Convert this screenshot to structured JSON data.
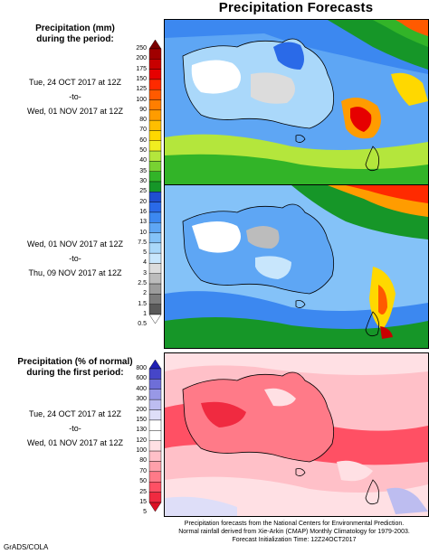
{
  "title": "Precipitation Forecasts",
  "section1": {
    "heading_line1": "Precipitation (mm)",
    "heading_line2": "during the period:"
  },
  "section2": {
    "heading_line1": "Precipitation (% of normal)",
    "heading_line2": "during the first period:"
  },
  "period1": {
    "start": "Tue, 24 OCT 2017 at 12Z",
    "sep": "-to-",
    "end": "Wed, 01 NOV 2017 at 12Z"
  },
  "period2": {
    "start": "Wed, 01 NOV 2017 at 12Z",
    "sep": "-to-",
    "end": "Thu, 09 NOV 2017 at 12Z"
  },
  "period3": {
    "start": "Tue, 24 OCT 2017 at 12Z",
    "sep": "-to-",
    "end": "Wed, 01 NOV 2017 at 12Z"
  },
  "scale_mm": {
    "labels": [
      "250",
      "200",
      "175",
      "150",
      "125",
      "100",
      "90",
      "80",
      "70",
      "60",
      "50",
      "40",
      "35",
      "30",
      "25",
      "20",
      "16",
      "13",
      "10",
      "7.5",
      "5",
      "4",
      "3",
      "2.5",
      "2",
      "1.5",
      "1",
      "0.5"
    ],
    "colors": [
      "#7a0000",
      "#a00000",
      "#c80000",
      "#e60000",
      "#ff2a00",
      "#ff5a00",
      "#ff7e00",
      "#ff9c00",
      "#ffbe00",
      "#ffd800",
      "#f0ee20",
      "#b4e63c",
      "#78d232",
      "#32b428",
      "#169628",
      "#1f4fd0",
      "#2a6ae8",
      "#3c88f0",
      "#5ea6f4",
      "#84c2f8",
      "#aad8fa",
      "#c8e6fc",
      "#dcdcdc",
      "#bcbcbc",
      "#9c9c9c",
      "#7c7c7c",
      "#5a5a5a",
      "#ffffff"
    ]
  },
  "scale_pct": {
    "labels": [
      "800",
      "600",
      "400",
      "300",
      "200",
      "150",
      "130",
      "120",
      "100",
      "80",
      "70",
      "50",
      "25",
      "15",
      "5"
    ],
    "colors": [
      "#2020b4",
      "#4646c8",
      "#6e6ed8",
      "#9898e6",
      "#bdbdf0",
      "#dedef8",
      "#ffffff",
      "#ffffff",
      "#ffe0e4",
      "#ffc0c8",
      "#ffa0aa",
      "#ff7a88",
      "#ff5064",
      "#f02a40",
      "#dc1024"
    ]
  },
  "footer": {
    "line1": "Precipitation forecasts from the National Centers for Environmental Prediction.",
    "line2": "Normal rainfall derived from Xie-Arkin (CMAP) Monthly Climatology for 1979-2003.",
    "line3": "Forecast Initialization Time: 12Z24OCT2017"
  },
  "credit": "GrADS/COLA"
}
